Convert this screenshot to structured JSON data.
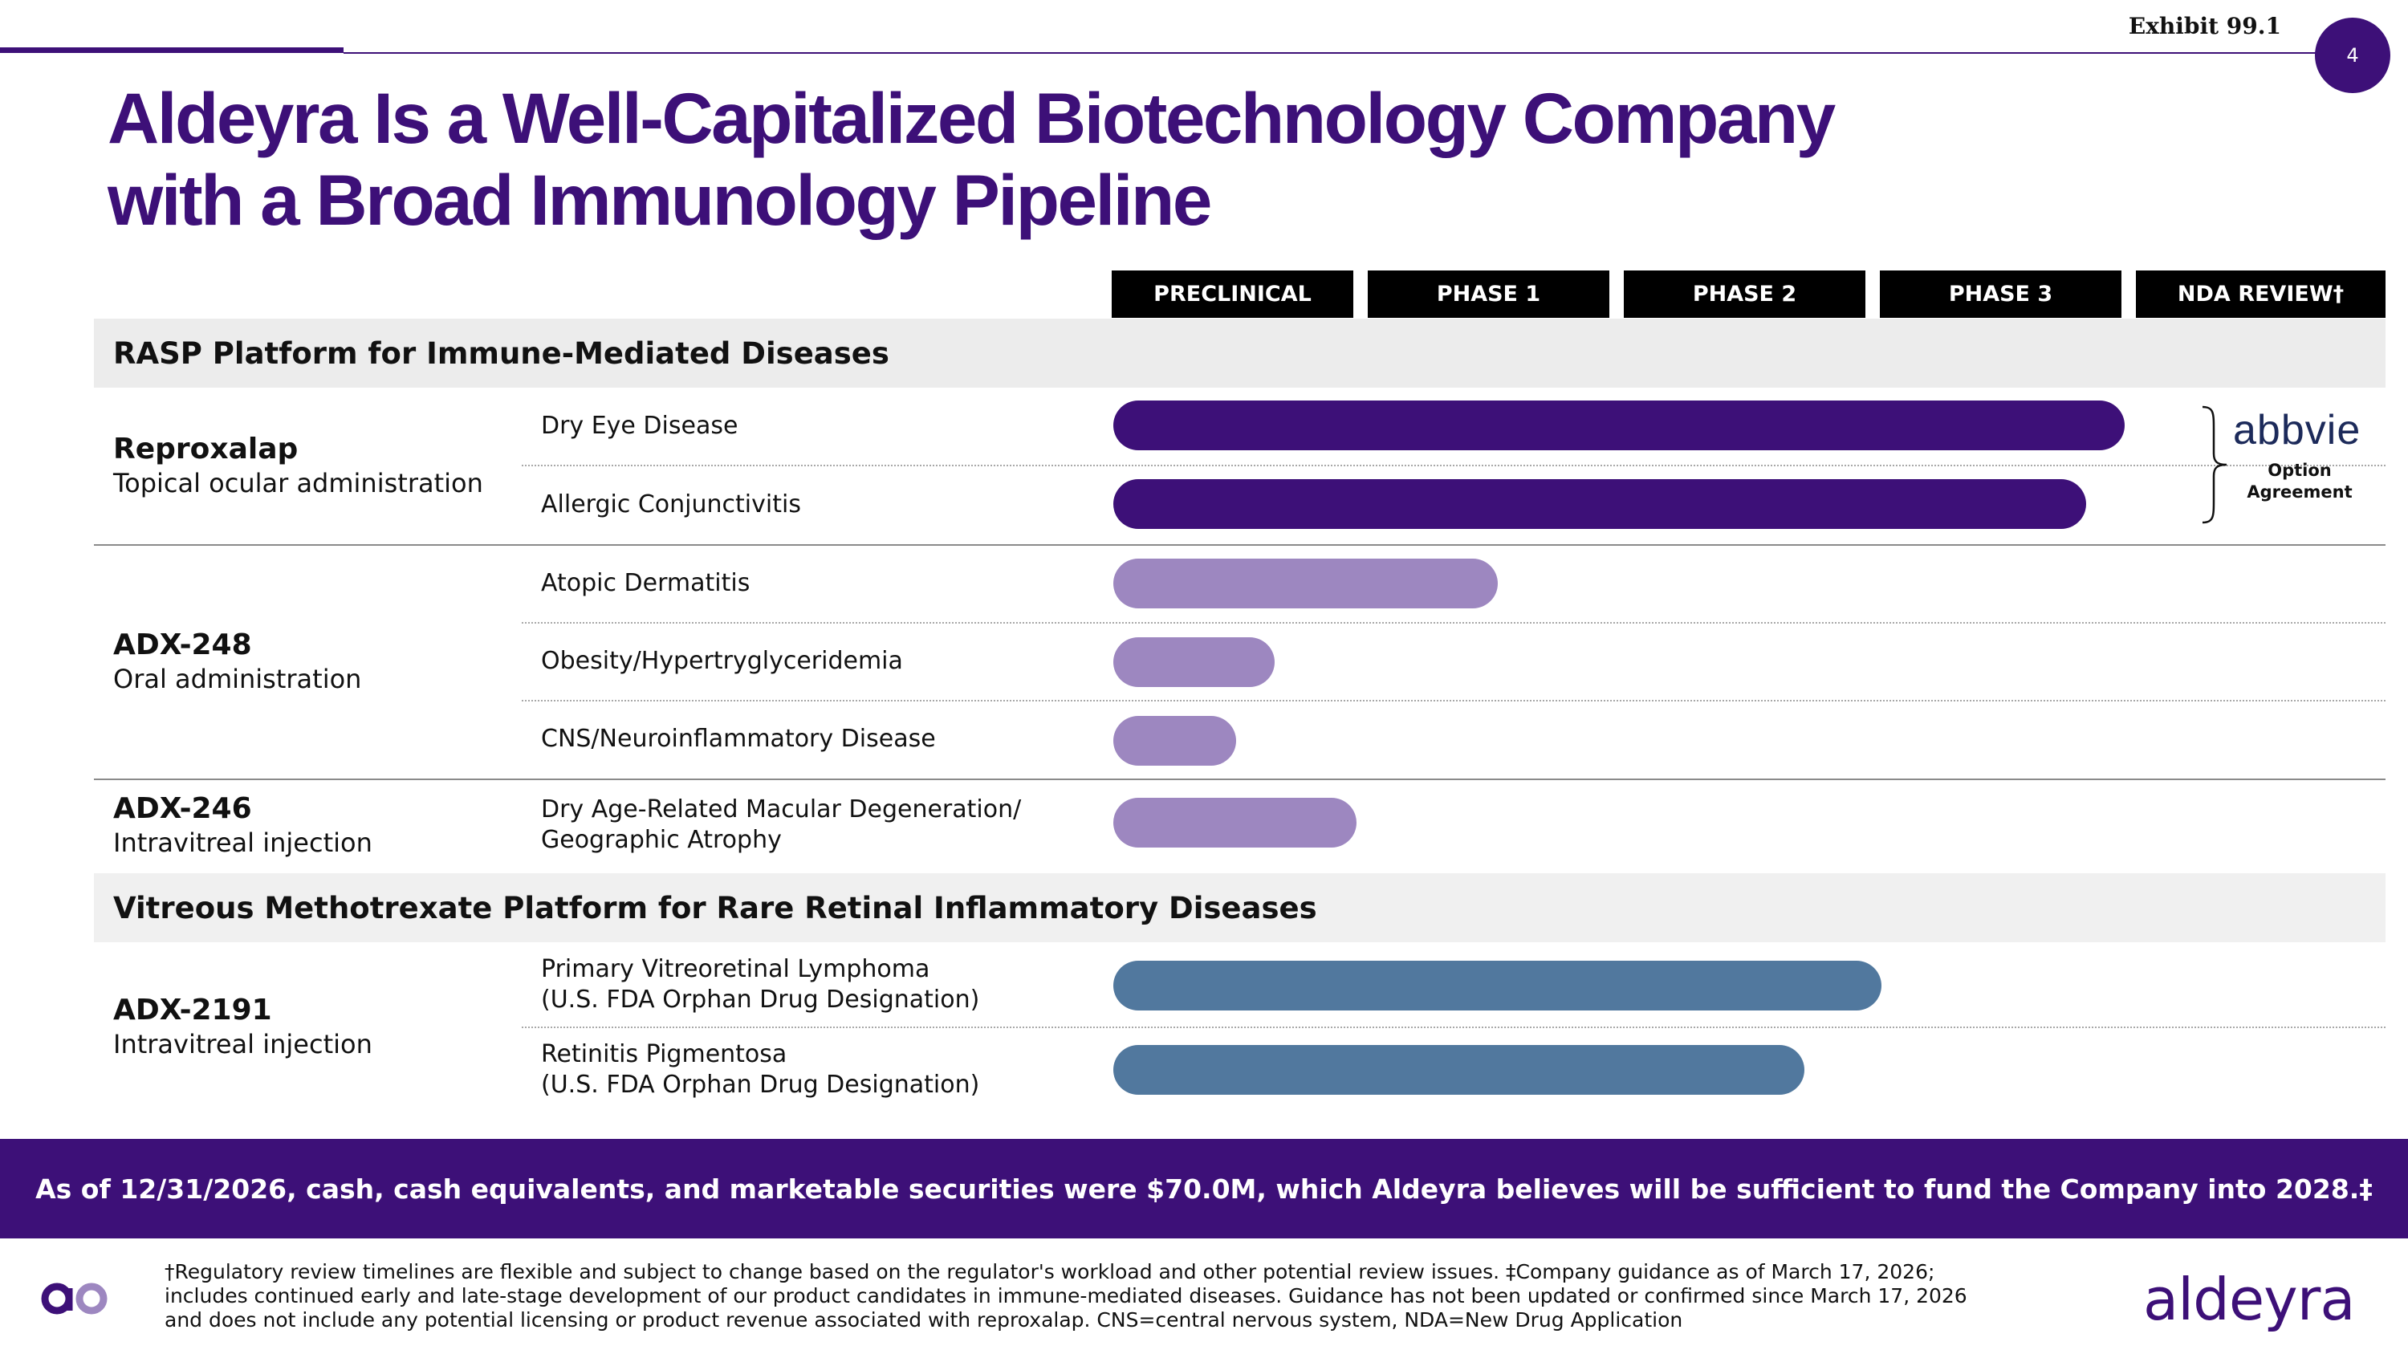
{
  "header": {
    "exhibit": "Exhibit 99.1",
    "page_number": "4",
    "title_line1": "Aldeyra Is a Well-Capitalized Biotechnology Company",
    "title_line2": "with a Broad Immunology Pipeline"
  },
  "chart_data": {
    "type": "bar",
    "orientation": "horizontal",
    "stages": [
      "PRECLINICAL",
      "PHASE 1",
      "PHASE 2",
      "PHASE 3",
      "NDA REVIEW†"
    ],
    "progress_unit": "stage columns completed (0–5)",
    "colors": {
      "reproxalap": "#3d1078",
      "adx": "#9d87c0",
      "methotrexate": "#51789e",
      "accent": "#3d1078"
    },
    "sections": [
      {
        "title": "RASP Platform for Immune-Mediated Diseases",
        "programs": [
          {
            "name": "Reproxalap",
            "route": "Topical ocular administration",
            "indications": [
              {
                "name": "Dry Eye Disease",
                "progress": 3.95,
                "color": "#3d1078"
              },
              {
                "name": "Allergic Conjunctivitis",
                "progress": 3.8,
                "color": "#3d1078"
              }
            ]
          },
          {
            "name": "ADX-248",
            "route": "Oral administration",
            "indications": [
              {
                "name": "Atopic Dermatitis",
                "progress": 1.5,
                "color": "#9d87c0"
              },
              {
                "name": "Obesity/Hypertryglyceridemia",
                "progress": 0.63,
                "color": "#9d87c0"
              },
              {
                "name": "CNS/Neuroinflammatory Disease",
                "progress": 0.48,
                "color": "#9d87c0"
              }
            ]
          },
          {
            "name": "ADX-246",
            "route": "Intravitreal injection",
            "indications": [
              {
                "name_line1": "Dry Age-Related Macular Degeneration/",
                "name_line2": "Geographic Atrophy",
                "progress": 0.95,
                "color": "#9d87c0"
              }
            ]
          }
        ]
      },
      {
        "title": "Vitreous Methotrexate Platform for Rare Retinal Inflammatory Diseases",
        "programs": [
          {
            "name": "ADX-2191",
            "route": "Intravitreal injection",
            "indications": [
              {
                "name_line1": "Primary Vitreoretinal Lymphoma",
                "name_line2": "(U.S. FDA Orphan Drug Designation)",
                "progress": 3.0,
                "color": "#51789e"
              },
              {
                "name_line1": "Retinitis Pigmentosa",
                "name_line2": "(U.S. FDA Orphan Drug Designation)",
                "progress": 2.7,
                "color": "#51789e"
              }
            ]
          }
        ]
      }
    ],
    "partner": {
      "name": "abbvie",
      "label": "Option\nAgreement"
    }
  },
  "banner": "As of 12/31/2026, cash, cash equivalents, and marketable securities were $70.0M, which Aldeyra believes will be sufficient to fund the Company into 2028.‡",
  "footnote": "†Regulatory review timelines are flexible and subject to change based on the regulator's workload and other potential review issues. ‡Company guidance as of March 17, 2026; includes continued early and late-stage development of our product candidates in immune-mediated diseases. Guidance has not been updated or confirmed since March 17, 2026 and does not include any potential licensing or product revenue associated with reproxalap. CNS=central nervous system, NDA=New Drug Application",
  "logo": {
    "word": "aldeyra",
    "mark_icon": "aldeyra-mark-icon"
  }
}
